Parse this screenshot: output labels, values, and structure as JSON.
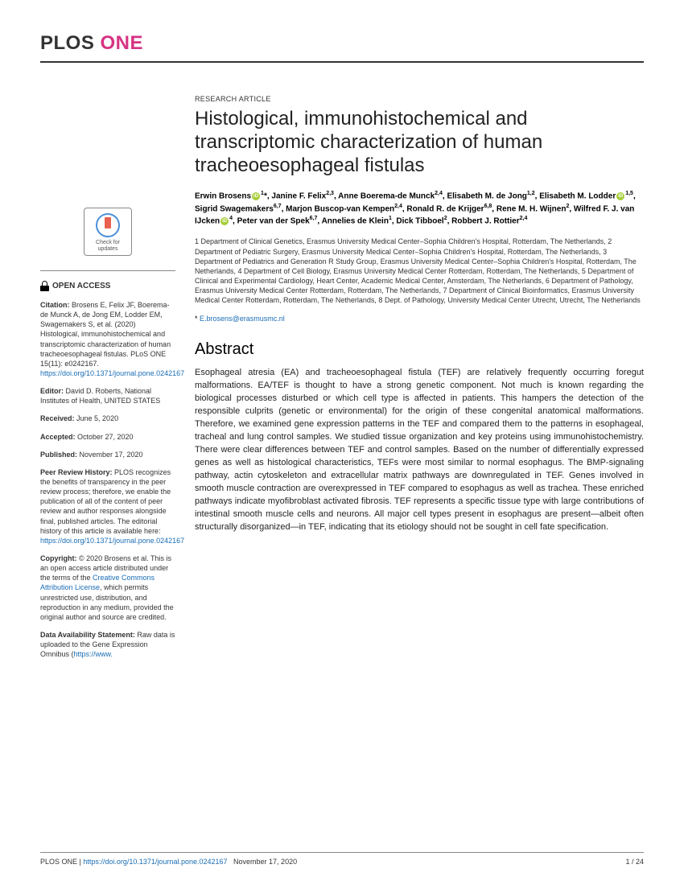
{
  "brand": {
    "plos": "PLOS",
    "one": "ONE"
  },
  "article_type": "RESEARCH ARTICLE",
  "title": "Histological, immunohistochemical and transcriptomic characterization of human tracheoesophageal fistulas",
  "authors_html": "Erwin Brosens{ORCID}<sup>1</sup>*, Janine F. Felix<sup>2,3</sup>, Anne Boerema-de Munck<sup>2,4</sup>, Elisabeth M. de Jong<sup>1,2</sup>, Elisabeth M. Lodder{ORCID}<sup>1,5</sup>, Sigrid Swagemakers<sup>6,7</sup>, Marjon Buscop-van Kempen<sup>2,4</sup>, Ronald R. de Krijger<sup>6,8</sup>, Rene M. H. Wijnen<sup>2</sup>, Wilfred F. J. van IJcken{ORCID}<sup>4</sup>, Peter van der Spek<sup>6,7</sup>, Annelies de Klein<sup>1</sup>, Dick Tibboel<sup>2</sup>, Robbert J. Rottier<sup>2,4</sup>",
  "affiliations": "1 Department of Clinical Genetics, Erasmus University Medical Center–Sophia Children's Hospital, Rotterdam, The Netherlands, 2 Department of Pediatric Surgery, Erasmus University Medical Center–Sophia Children's Hospital, Rotterdam, The Netherlands, 3 Department of Pediatrics and Generation R Study Group, Erasmus University Medical Center–Sophia Children's Hospital, Rotterdam, The Netherlands, 4 Department of Cell Biology, Erasmus University Medical Center Rotterdam, Rotterdam, The Netherlands, 5 Department of Clinical and Experimental Cardiology, Heart Center, Academic Medical Center, Amsterdam, The Netherlands, 6 Department of Pathology, Erasmus University Medical Center Rotterdam, Rotterdam, The Netherlands, 7 Department of Clinical Bioinformatics, Erasmus University Medical Center Rotterdam, Rotterdam, The Netherlands, 8 Dept. of Pathology, University Medical Center Utrecht, Utrecht, The Netherlands",
  "corresponding": {
    "symbol": "*",
    "email": "E.brosens@erasmusmc.nl"
  },
  "abstract_heading": "Abstract",
  "abstract": "Esophageal atresia (EA) and tracheoesophageal fistula (TEF) are relatively frequently occurring foregut malformations. EA/TEF is thought to have a strong genetic component. Not much is known regarding the biological processes disturbed or which cell type is affected in patients. This hampers the detection of the responsible culprits (genetic or environmental) for the origin of these congenital anatomical malformations. Therefore, we examined gene expression patterns in the TEF and compared them to the patterns in esophageal, tracheal and lung control samples. We studied tissue organization and key proteins using immunohistochemistry. There were clear differences between TEF and control samples. Based on the number of differentially expressed genes as well as histological characteristics, TEFs were most similar to normal esophagus. The BMP-signaling pathway, actin cytoskeleton and extracellular matrix pathways are downregulated in TEF. Genes involved in smooth muscle contraction are overexpressed in TEF compared to esophagus as well as trachea. These enriched pathways indicate myofibroblast activated fibrosis. TEF represents a specific tissue type with large contributions of intestinal smooth muscle cells and neurons. All major cell types present in esophagus are present—albeit often structurally disorganized—in TEF, indicating that its etiology should not be sought in cell fate specification.",
  "check_updates": "Check for updates",
  "open_access": "OPEN ACCESS",
  "sidebar": {
    "citation_label": "Citation:",
    "citation_text": " Brosens E, Felix JF, Boerema-de Munck A, de Jong EM, Lodder EM, Swagemakers S, et al. (2020) Histological, immunohistochemical and transcriptomic characterization of human tracheoesophageal fistulas. PLoS ONE 15(11): e0242167. ",
    "citation_link": "https://doi.org/10.1371/journal.pone.0242167",
    "editor_label": "Editor:",
    "editor_text": " David D. Roberts, National Institutes of Health, UNITED STATES",
    "received_label": "Received:",
    "received_text": " June 5, 2020",
    "accepted_label": "Accepted:",
    "accepted_text": " October 27, 2020",
    "published_label": "Published:",
    "published_text": " November 17, 2020",
    "peer_label": "Peer Review History:",
    "peer_text": " PLOS recognizes the benefits of transparency in the peer review process; therefore, we enable the publication of all of the content of peer review and author responses alongside final, published articles. The editorial history of this article is available here: ",
    "peer_link": "https://doi.org/10.1371/journal.pone.0242167",
    "copyright_label": "Copyright:",
    "copyright_text_1": " © 2020 Brosens et al. This is an open access article distributed under the terms of the ",
    "copyright_link": "Creative Commons Attribution License",
    "copyright_text_2": ", which permits unrestricted use, distribution, and reproduction in any medium, provided the original author and source are credited.",
    "data_label": "Data Availability Statement:",
    "data_text": " Raw data is uploaded to the Gene Expression Omnibus (",
    "data_link": "https://www."
  },
  "footer": {
    "journal": "PLOS ONE | ",
    "doi": "https://doi.org/10.1371/journal.pone.0242167",
    "date": "November 17, 2020",
    "page": "1 / 24"
  },
  "colors": {
    "brand_one": "#d63384",
    "link": "#1a6db5",
    "orcid": "#a6ce39"
  }
}
